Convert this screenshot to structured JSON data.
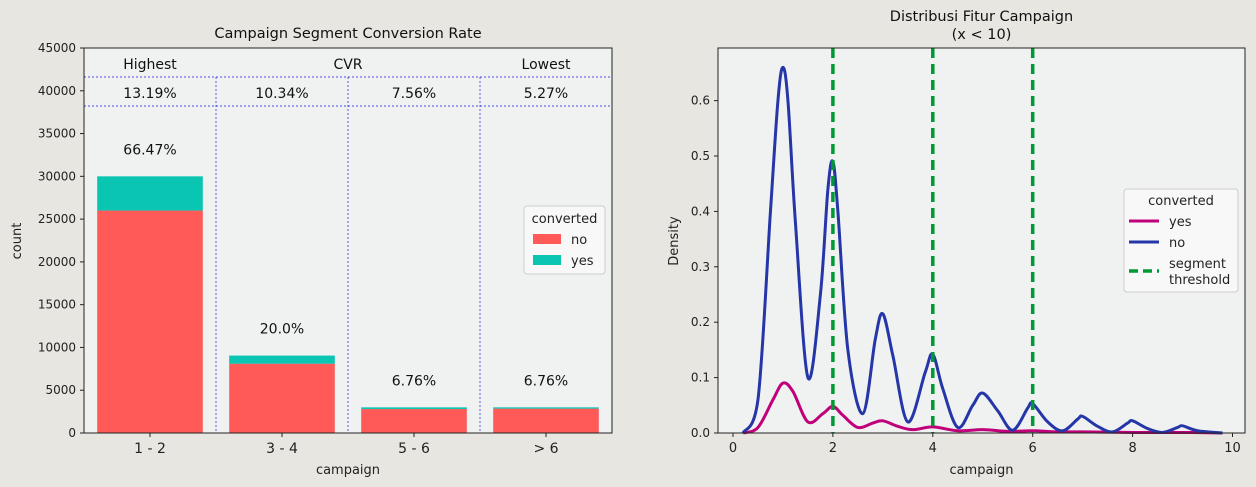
{
  "chart_data": [
    {
      "type": "bar",
      "title": "Campaign Segment Conversion Rate",
      "xlabel": "campaign",
      "ylabel": "count",
      "ylim": [
        0,
        45000
      ],
      "yticks": [
        "0",
        "5000",
        "10000",
        "15000",
        "20000",
        "25000",
        "30000",
        "35000",
        "40000",
        "45000"
      ],
      "categories": [
        "1 - 2",
        "3 - 4",
        "5 - 6",
        "> 6"
      ],
      "stacked": true,
      "series": [
        {
          "name": "no",
          "color": "#ff5a57",
          "values": [
            26000,
            8100,
            2800,
            2850
          ]
        },
        {
          "name": "yes",
          "color": "#0ac5b2",
          "values": [
            4000,
            950,
            200,
            150
          ]
        }
      ],
      "share_labels": [
        "66.47%",
        "20.0%",
        "6.76%",
        "6.76%"
      ],
      "header_labels": [
        "Highest",
        "CVR",
        "Lowest"
      ],
      "cvr_labels": [
        "13.19%",
        "10.34%",
        "7.56%",
        "5.27%"
      ],
      "legend": {
        "title": "converted",
        "placement": "center-right"
      },
      "grid": false
    },
    {
      "type": "line",
      "title_line1": "Distribusi Fitur Campaign",
      "title_line2": "(x < 10)",
      "xlabel": "campaign",
      "ylabel": "Density",
      "xlim": [
        -0.3,
        10.25
      ],
      "ylim": [
        0,
        0.695
      ],
      "xticks": [
        "0",
        "2",
        "4",
        "6",
        "8",
        "10"
      ],
      "yticks": [
        "0.0",
        "0.1",
        "0.2",
        "0.3",
        "0.4",
        "0.5",
        "0.6"
      ],
      "series": [
        {
          "name": "yes",
          "color": "#c0007a",
          "x": [
            0.2,
            0.5,
            0.8,
            1.0,
            1.2,
            1.5,
            1.8,
            2.0,
            2.2,
            2.5,
            2.8,
            3.0,
            3.3,
            3.6,
            4.0,
            4.5,
            5.0,
            5.5,
            6.0,
            6.5,
            7.0,
            8.0,
            9.0,
            9.8
          ],
          "y": [
            0.0,
            0.01,
            0.06,
            0.09,
            0.075,
            0.02,
            0.035,
            0.048,
            0.032,
            0.01,
            0.018,
            0.022,
            0.012,
            0.006,
            0.011,
            0.004,
            0.006,
            0.003,
            0.004,
            0.002,
            0.002,
            0.001,
            0.001,
            0.0
          ]
        },
        {
          "name": "no",
          "color": "#2536a8",
          "x": [
            0.2,
            0.5,
            0.75,
            0.9,
            1.0,
            1.1,
            1.25,
            1.5,
            1.75,
            1.9,
            2.0,
            2.1,
            2.3,
            2.6,
            2.85,
            3.0,
            3.2,
            3.5,
            3.85,
            4.0,
            4.2,
            4.5,
            4.8,
            5.0,
            5.3,
            5.6,
            5.9,
            6.0,
            6.3,
            6.6,
            6.9,
            7.0,
            7.3,
            7.6,
            7.9,
            8.0,
            8.3,
            8.6,
            8.9,
            9.0,
            9.3,
            9.8
          ],
          "y": [
            0.0,
            0.06,
            0.4,
            0.6,
            0.66,
            0.6,
            0.38,
            0.1,
            0.25,
            0.44,
            0.49,
            0.4,
            0.15,
            0.035,
            0.17,
            0.215,
            0.14,
            0.02,
            0.11,
            0.142,
            0.08,
            0.01,
            0.05,
            0.072,
            0.04,
            0.005,
            0.045,
            0.053,
            0.02,
            0.004,
            0.025,
            0.03,
            0.012,
            0.002,
            0.018,
            0.022,
            0.008,
            0.001,
            0.01,
            0.013,
            0.004,
            0.0
          ]
        }
      ],
      "thresholds": [
        2,
        4,
        6
      ],
      "threshold_label_line1": "segment",
      "threshold_label_line2": "threshold",
      "threshold_color": "#009933",
      "legend": {
        "title": "converted",
        "placement": "center-right"
      },
      "grid": false
    }
  ]
}
